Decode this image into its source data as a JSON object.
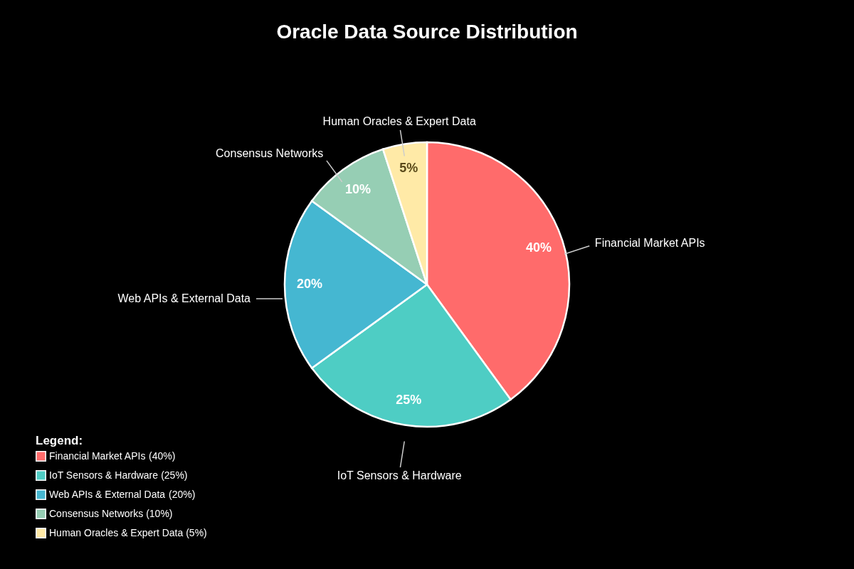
{
  "chart_data": {
    "type": "pie",
    "title": "Oracle Data Source Distribution",
    "categories": [
      "Financial Market APIs",
      "IoT Sensors & Hardware",
      "Web APIs & External Data",
      "Consensus Networks",
      "Human Oracles & Expert Data"
    ],
    "values": [
      40,
      25,
      20,
      10,
      5
    ],
    "colors": [
      "#ff6b6b",
      "#4ecdc4",
      "#45b7d1",
      "#96ceb4",
      "#ffeaa7"
    ],
    "value_labels": [
      "40%",
      "25%",
      "20%",
      "10%",
      "5%"
    ],
    "annotations": [
      "(40%)",
      "(25%)",
      "(20%)",
      "(10%)",
      "(5%)"
    ],
    "legend_title": "Legend:",
    "legend": "bottom left",
    "data_labels": true
  }
}
